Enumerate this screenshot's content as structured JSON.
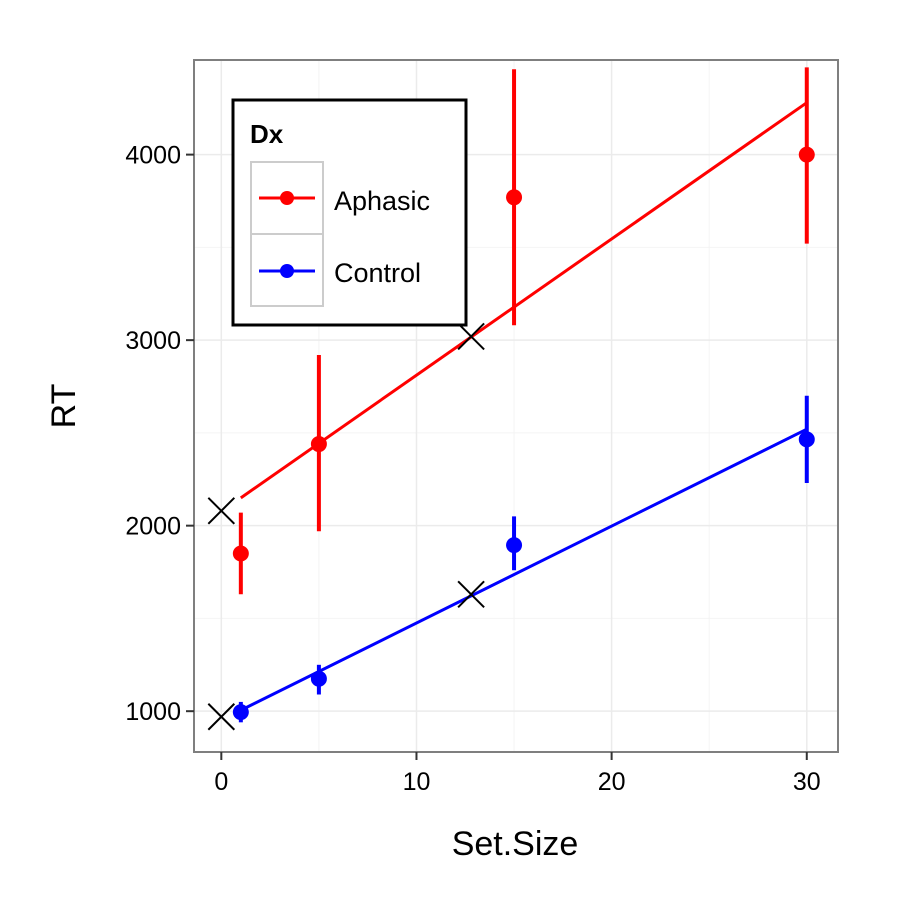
{
  "chart_data": {
    "type": "scatter",
    "xlabel": "Set.Size",
    "ylabel": "RT",
    "xlim": [
      -1.4,
      31.6
    ],
    "ylim": [
      780,
      4510
    ],
    "x_ticks": [
      0,
      10,
      20,
      30
    ],
    "y_ticks": [
      1000,
      2000,
      3000,
      4000
    ],
    "x_minor_ticks": [
      5,
      15,
      25
    ],
    "y_minor_ticks": [
      1500,
      2500,
      3500
    ],
    "grid": true,
    "legend": {
      "title": "Dx",
      "placement": "top-left"
    },
    "series": [
      {
        "name": "Aphasic",
        "color": "#ff0000",
        "points": [
          {
            "x": 1,
            "y": 1850,
            "low": 1630,
            "high": 2070
          },
          {
            "x": 5,
            "y": 2440,
            "low": 1970,
            "high": 2920
          },
          {
            "x": 15,
            "y": 3770,
            "low": 3080,
            "high": 4460
          },
          {
            "x": 30,
            "y": 4000,
            "low": 3520,
            "high": 4470
          }
        ],
        "fit_line": [
          {
            "x": 1,
            "y": 2150
          },
          {
            "x": 30,
            "y": 4280
          }
        ]
      },
      {
        "name": "Control",
        "color": "#0000ff",
        "points": [
          {
            "x": 1,
            "y": 995,
            "low": 940,
            "high": 1050
          },
          {
            "x": 5,
            "y": 1175,
            "low": 1090,
            "high": 1250
          },
          {
            "x": 15,
            "y": 1895,
            "low": 1760,
            "high": 2050
          },
          {
            "x": 30,
            "y": 2465,
            "low": 2230,
            "high": 2700
          }
        ],
        "fit_line": [
          {
            "x": 1,
            "y": 1005
          },
          {
            "x": 30,
            "y": 2520
          }
        ]
      }
    ],
    "annotations": [
      {
        "marker": "x",
        "x": 0,
        "y": 2080
      },
      {
        "marker": "x",
        "x": 12.8,
        "y": 3020
      },
      {
        "marker": "x",
        "x": 0,
        "y": 970
      },
      {
        "marker": "x",
        "x": 12.8,
        "y": 1630
      }
    ]
  }
}
